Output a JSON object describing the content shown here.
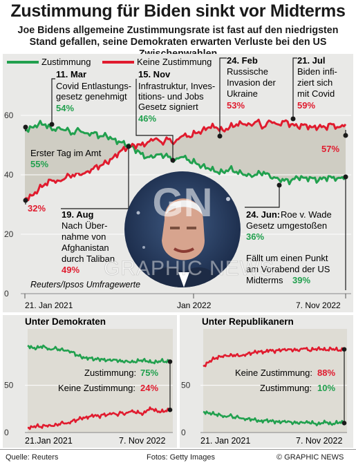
{
  "title": "Zustimmung für Biden sinkt vor Midterms",
  "subtitle": "Joe Bidens allgemeine Zustimmungsrate ist fast auf den niedrigsten Stand gefallen, seine Demokraten erwarten Verluste bei den US Zwischenwahlen",
  "colors": {
    "approve": "#21a04e",
    "disapprove": "#e01b2e",
    "panel": "#e9e9e7",
    "band": "#cfcdc3"
  },
  "chart_data": [
    {
      "type": "line",
      "legend": [
        "Zustimmung",
        "Keine Zustimmung"
      ],
      "x_start": "2021-01-21",
      "x_end": "2022-11-07",
      "x_ticks": [
        "21. Jan 2021",
        "Jan 2022",
        "7. Nov 2022"
      ],
      "yticks": [
        20,
        40,
        60
      ],
      "ylim": [
        0,
        70
      ],
      "series": [
        {
          "name": "Zustimmung",
          "values": [
            55,
            56,
            57,
            57,
            55,
            56,
            55,
            54,
            55,
            54,
            54,
            53,
            53,
            52,
            51,
            50,
            49,
            47,
            46,
            46,
            47,
            46,
            45,
            46,
            45,
            44,
            43,
            42,
            41,
            41,
            42,
            41,
            40,
            40,
            40,
            41,
            39,
            39,
            38,
            38,
            39,
            39,
            39,
            38,
            39,
            39,
            39,
            39
          ]
        },
        {
          "name": "Keine Zustimmung",
          "values": [
            32,
            33,
            35,
            37,
            38,
            38,
            39,
            40,
            40,
            41,
            42,
            43,
            44,
            46,
            48,
            49,
            50,
            50,
            51,
            52,
            51,
            52,
            51,
            53,
            53,
            54,
            55,
            56,
            56,
            55,
            56,
            57,
            57,
            57,
            58,
            56,
            58,
            57,
            58,
            57,
            56,
            57,
            56,
            56,
            56,
            57,
            56,
            57
          ]
        }
      ],
      "annotations": [
        {
          "date": "Erster Tag im Amt",
          "text": "",
          "values": [
            "55%",
            "32%"
          ]
        },
        {
          "date": "11. Mar",
          "text": "Covid Entlastungs-gesetz genehmigt",
          "value": "54%"
        },
        {
          "date": "19. Aug",
          "text": "Nach Übernahme von Afghanistan durch Taliban",
          "value": "49%"
        },
        {
          "date": "15. Nov",
          "text": "Infrastruktur, Investitions- und Jobs Gesetz signiert",
          "value": "46%"
        },
        {
          "date": "24. Feb",
          "text": "Russische Invasion der Ukraine",
          "value": "53%"
        },
        {
          "date": "21. Jul",
          "text": "Biden infiziert sich mit Covid",
          "value": "59%"
        },
        {
          "date": "24. Jun:",
          "text": "Roe v. Wade Gesetz umgestoßen",
          "value": "36%"
        },
        {
          "date": "",
          "text": "Fällt um einen Punkt am Vorabend der US Midterms",
          "value": "39%"
        },
        {
          "date": "",
          "text": "",
          "value": "57%"
        }
      ],
      "source_note": "Reuters/Ipsos Umfragewerte"
    },
    {
      "type": "line",
      "title": "Unter Demokraten",
      "x_ticks": [
        "21.Jan 2021",
        "7. Nov 2022"
      ],
      "yticks": [
        0,
        50
      ],
      "ylim": [
        0,
        100
      ],
      "series": [
        {
          "name": "Zustimmung",
          "label": "Zustimmung:",
          "end_value": "75%",
          "values": [
            92,
            90,
            89,
            91,
            90,
            88,
            89,
            88,
            87,
            87,
            85,
            82,
            80,
            79,
            79,
            77,
            78,
            77,
            77,
            76,
            77,
            75,
            76,
            74,
            75,
            76,
            77,
            75,
            74,
            75,
            76,
            75,
            75
          ]
        },
        {
          "name": "Keine Zustimmung",
          "label": "Keine Zustimmung:",
          "end_value": "24%",
          "values": [
            5,
            6,
            7,
            6,
            7,
            8,
            7,
            9,
            10,
            10,
            12,
            13,
            15,
            16,
            17,
            18,
            17,
            19,
            19,
            20,
            19,
            21,
            20,
            22,
            22,
            21,
            20,
            24,
            25,
            23,
            22,
            23,
            24
          ]
        }
      ]
    },
    {
      "type": "line",
      "title": "Unter Republikanern",
      "x_ticks": [
        "21. Jan 2021",
        "7. Nov 2022"
      ],
      "yticks": [
        0,
        50
      ],
      "ylim": [
        0,
        100
      ],
      "series": [
        {
          "name": "Keine Zustimmung",
          "label": "Keine Zustimmung:",
          "end_value": "88%",
          "values": [
            70,
            74,
            77,
            79,
            80,
            82,
            81,
            82,
            81,
            82,
            83,
            84,
            85,
            86,
            85,
            87,
            86,
            87,
            88,
            87,
            88,
            87,
            88,
            89,
            87,
            88,
            89,
            88,
            87,
            89,
            88,
            87,
            88
          ]
        },
        {
          "name": "Zustimmung",
          "label": "Zustimmung:",
          "end_value": "10%",
          "values": [
            22,
            21,
            20,
            19,
            18,
            17,
            18,
            16,
            16,
            15,
            14,
            14,
            13,
            12,
            13,
            12,
            12,
            11,
            12,
            11,
            11,
            10,
            11,
            10,
            11,
            10,
            9,
            10,
            11,
            9,
            10,
            11,
            10
          ]
        }
      ]
    }
  ],
  "footer": {
    "source": "Quelle: Reuters",
    "photo_credit": "Fotos: Getty Images",
    "brand": "© GRAPHIC NEWS"
  },
  "watermark": "GRAPHIC NEWS",
  "logo_text": "GN"
}
